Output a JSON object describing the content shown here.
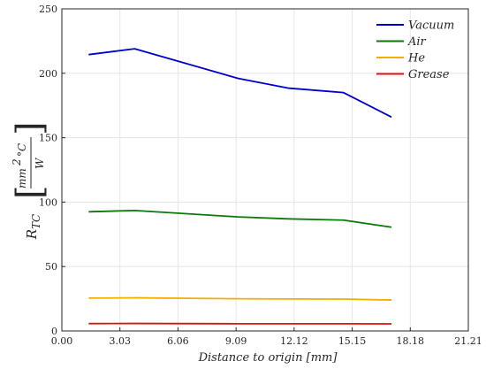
{
  "chart_data": {
    "type": "line",
    "xlabel": "Distance to origin [mm]",
    "ylabel": {
      "symbol": "R",
      "subscript": "TC",
      "numerator": "mm",
      "numerator_exp": "2",
      "numerator_unit": "°C",
      "denominator": "W"
    },
    "xlim": [
      0.0,
      21.21
    ],
    "ylim": [
      0,
      250
    ],
    "xticks": [
      "0.00",
      "3.03",
      "6.06",
      "9.09",
      "12.12",
      "15.15",
      "18.18",
      "21.21"
    ],
    "xtick_values": [
      0.0,
      3.03,
      6.06,
      9.09,
      12.12,
      15.15,
      18.18,
      21.21
    ],
    "yticks": [
      "0",
      "50",
      "100",
      "150",
      "200",
      "250"
    ],
    "ytick_values": [
      0,
      50,
      100,
      150,
      200,
      250
    ],
    "grid": true,
    "legend_position": "top-right",
    "x": [
      1.4,
      3.8,
      9.2,
      11.8,
      14.7,
      17.2
    ],
    "series": [
      {
        "name": "Vacuum",
        "color": "#0000cc",
        "values": [
          214.5,
          219,
          196,
          188.5,
          185,
          166
        ]
      },
      {
        "name": "Air",
        "color": "#0a7a0a",
        "values": [
          92.5,
          93.5,
          88.5,
          87,
          86,
          80.5
        ]
      },
      {
        "name": "He",
        "color": "#f0b000",
        "values": [
          25.5,
          25.7,
          25,
          24.8,
          24.7,
          24
        ]
      },
      {
        "name": "Grease",
        "color": "#e01010",
        "values": [
          5.7,
          5.8,
          5.6,
          5.6,
          5.6,
          5.5
        ]
      }
    ]
  }
}
